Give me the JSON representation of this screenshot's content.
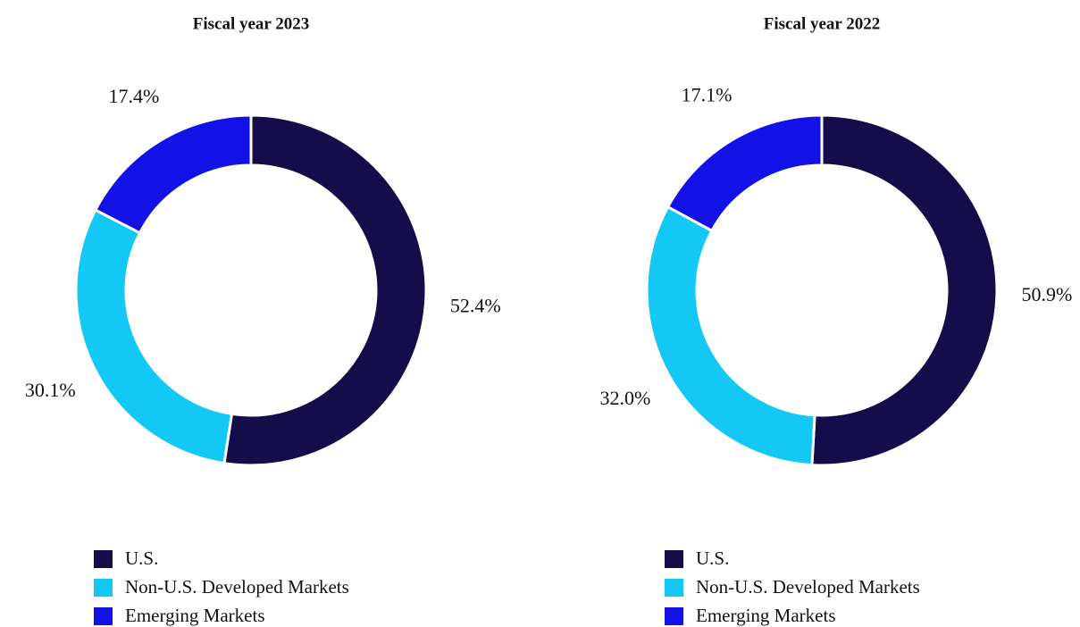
{
  "chart_data": [
    {
      "type": "pie",
      "title": "Fiscal year 2023",
      "categories": [
        "U.S.",
        "Non-U.S. Developed Markets",
        "Emerging Markets"
      ],
      "values": [
        52.4,
        30.1,
        17.4
      ],
      "value_labels": [
        "52.4%",
        "30.1%",
        "17.4%"
      ],
      "colors": [
        "#150d4a",
        "#14c8f5",
        "#1212e6"
      ]
    },
    {
      "type": "pie",
      "title": "Fiscal year 2022",
      "categories": [
        "U.S.",
        "Non-U.S. Developed Markets",
        "Emerging Markets"
      ],
      "values": [
        50.9,
        32.0,
        17.1
      ],
      "value_labels": [
        "50.9%",
        "32.0%",
        "17.1%"
      ],
      "colors": [
        "#150d4a",
        "#14c8f5",
        "#1212e6"
      ]
    }
  ]
}
